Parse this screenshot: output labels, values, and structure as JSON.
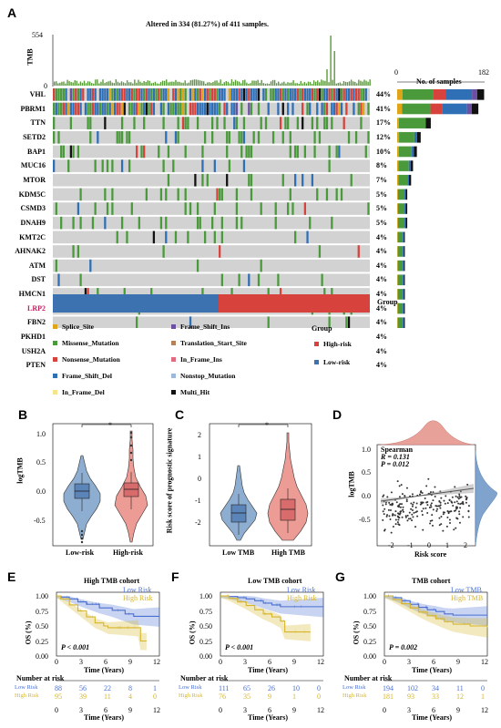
{
  "panelA": {
    "label": "A",
    "title": "Altered in 334 (81.27%) of 411 samples.",
    "tmb_label": "TMB",
    "tmb_max": "554",
    "tmb_min": "0",
    "bar_axis_min": "0",
    "bar_axis_max": "182",
    "bar_axis_label": "No. of samples",
    "group_label": "Group",
    "genes": [
      {
        "name": "VHL",
        "pct": "44%",
        "count": 181
      },
      {
        "name": "PBRM1",
        "pct": "41%",
        "count": 169
      },
      {
        "name": "TTN",
        "pct": "17%",
        "count": 70
      },
      {
        "name": "SETD2",
        "pct": "12%",
        "count": 49
      },
      {
        "name": "BAP1",
        "pct": "10%",
        "count": 41
      },
      {
        "name": "MUC16",
        "pct": "8%",
        "count": 33
      },
      {
        "name": "MTOR",
        "pct": "7%",
        "count": 29
      },
      {
        "name": "KDM5C",
        "pct": "5%",
        "count": 21
      },
      {
        "name": "CSMD3",
        "pct": "5%",
        "count": 21
      },
      {
        "name": "DNAH9",
        "pct": "5%",
        "count": 21
      },
      {
        "name": "KMT2C",
        "pct": "4%",
        "count": 16
      },
      {
        "name": "AHNAK2",
        "pct": "4%",
        "count": 16
      },
      {
        "name": "ATM",
        "pct": "4%",
        "count": 16
      },
      {
        "name": "DST",
        "pct": "4%",
        "count": 16
      },
      {
        "name": "HMCN1",
        "pct": "4%",
        "count": 16
      },
      {
        "name": "LRP2",
        "pct": "4%",
        "count": 16
      },
      {
        "name": "FBN2",
        "pct": "4%",
        "count": 16
      },
      {
        "name": "PKHD1",
        "pct": "4%",
        "count": 16
      },
      {
        "name": "USH2A",
        "pct": "4%",
        "count": 16
      },
      {
        "name": "PTEN",
        "pct": "4%",
        "count": 16
      }
    ],
    "mutation_legend": [
      {
        "label": "Splice_Site",
        "color": "#e0a419"
      },
      {
        "label": "Missense_Mutation",
        "color": "#4a9a3c"
      },
      {
        "label": "Nonsense_Mutation",
        "color": "#d8423c"
      },
      {
        "label": "Frame_Shift_Del",
        "color": "#2f6fb6"
      },
      {
        "label": "In_Frame_Del",
        "color": "#f5e48a"
      },
      {
        "label": "Frame_Shift_Ins",
        "color": "#6a4fa2"
      },
      {
        "label": "Translation_Start_Site",
        "color": "#b5805a"
      },
      {
        "label": "In_Frame_Ins",
        "color": "#e26b7d"
      },
      {
        "label": "Nonstop_Mutation",
        "color": "#9ab9dc"
      },
      {
        "label": "Multi_Hit",
        "color": "#111111"
      }
    ],
    "group_legend_title": "Group",
    "group_legend": [
      {
        "label": "High-risk",
        "color": "#d8423c"
      },
      {
        "label": "Low-risk",
        "color": "#3d72b0"
      }
    ]
  },
  "panelB": {
    "label": "B",
    "ylabel": "logTMB",
    "sig": "*",
    "categories": [
      "Low-risk",
      "High-risk"
    ],
    "yticks": [
      "1.0",
      "0.5",
      "0.0",
      "-0.5"
    ]
  },
  "panelC": {
    "label": "C",
    "ylabel": "Risk score of prognostic signature",
    "sig": "*",
    "categories": [
      "Low TMB",
      "High TMB"
    ],
    "yticks": [
      "2",
      "1",
      "0",
      "-1",
      "-2"
    ]
  },
  "panelD": {
    "label": "D",
    "ylabel": "logTMB",
    "xlabel": "Risk score",
    "stat_method": "Spearman",
    "stat_r": "R = 0.131",
    "stat_p": "P = 0.012",
    "yticks": [
      "1.0",
      "0.5",
      "0.0",
      "-0.5"
    ],
    "xticks": [
      "-2",
      "-1",
      "0",
      "1",
      "2"
    ]
  },
  "km_common": {
    "ylabel": "OS (%)",
    "xlabel": "Time (Years)",
    "yticks": [
      "1.00",
      "0.75",
      "0.50",
      "0.25",
      "0.00"
    ],
    "xticks": [
      "0",
      "3",
      "6",
      "9",
      "12"
    ],
    "risk_title": "Number at risk"
  },
  "panelE": {
    "label": "E",
    "title": "High TMB cohort",
    "legend": [
      "Low Risk",
      "High Risk"
    ],
    "pval": "P < 0.001",
    "risk_rows": [
      {
        "name": "Low Risk",
        "values": [
          "88",
          "56",
          "22",
          "8",
          "1"
        ]
      },
      {
        "name": "High Risk",
        "values": [
          "95",
          "39",
          "11",
          "4",
          "0"
        ]
      }
    ]
  },
  "panelF": {
    "label": "F",
    "title": "Low TMB cohort",
    "legend": [
      "Low Risk",
      "High Risk"
    ],
    "pval": "P < 0.001",
    "risk_rows": [
      {
        "name": "Low Risk",
        "values": [
          "111",
          "65",
          "26",
          "10",
          "0"
        ]
      },
      {
        "name": "High Risk",
        "values": [
          "76",
          "35",
          "9",
          "1",
          "0"
        ]
      }
    ]
  },
  "panelG": {
    "label": "G",
    "title": "TMB cohort",
    "legend": [
      "Low TMB",
      "High TMB"
    ],
    "pval": "P = 0.002",
    "risk_rows": [
      {
        "name": "Low Risk",
        "values": [
          "194",
          "102",
          "34",
          "11",
          "0"
        ]
      },
      {
        "name": "High Risk",
        "values": [
          "181",
          "93",
          "33",
          "12",
          "1"
        ]
      }
    ]
  },
  "colors": {
    "low": "#3d72b0",
    "high": "#d8423c",
    "km_low": "#4a6fd0",
    "km_high": "#d6b52a",
    "grey": "#d2d2d2"
  },
  "chart_data": [
    {
      "type": "bar",
      "title": "Altered in 334 (81.27%) of 411 samples.",
      "categories": [
        "VHL",
        "PBRM1",
        "TTN",
        "SETD2",
        "BAP1",
        "MUC16",
        "MTOR",
        "KDM5C",
        "CSMD3",
        "DNAH9",
        "KMT2C",
        "AHNAK2",
        "ATM",
        "DST",
        "HMCN1",
        "LRP2",
        "FBN2",
        "PKHD1",
        "USH2A",
        "PTEN"
      ],
      "values": [
        44,
        41,
        17,
        12,
        10,
        8,
        7,
        5,
        5,
        5,
        4,
        4,
        4,
        4,
        4,
        4,
        4,
        4,
        4,
        4
      ],
      "xlabel": "No. of samples",
      "xlim": [
        0,
        182
      ]
    },
    {
      "type": "violin",
      "categories": [
        "Low-risk",
        "High-risk"
      ],
      "medians": [
        -0.05,
        0.0
      ],
      "ylabel": "logTMB",
      "ylim": [
        -0.8,
        1.2
      ]
    },
    {
      "type": "violin",
      "categories": [
        "Low TMB",
        "High TMB"
      ],
      "medians": [
        -1.4,
        -1.15
      ],
      "ylabel": "Risk score of prognostic signature",
      "ylim": [
        -2.5,
        2.2
      ]
    },
    {
      "type": "scatter",
      "xlabel": "Risk score",
      "ylabel": "logTMB",
      "annotation": [
        "Spearman",
        "R = 0.131",
        "P = 0.012"
      ],
      "xlim": [
        -2.7,
        2.5
      ],
      "ylim": [
        -0.8,
        1.2
      ]
    },
    {
      "type": "line",
      "title": "High TMB cohort",
      "xlabel": "Time (Years)",
      "ylabel": "OS (%)",
      "series": [
        {
          "name": "Low Risk",
          "x": [
            0,
            3,
            6,
            9,
            10,
            12
          ],
          "y": [
            1.0,
            0.88,
            0.78,
            0.68,
            0.65,
            0.65
          ]
        },
        {
          "name": "High Risk",
          "x": [
            0,
            3,
            6,
            9,
            10,
            10.5
          ],
          "y": [
            1.0,
            0.7,
            0.48,
            0.46,
            0.46,
            0.25
          ]
        }
      ],
      "xlim": [
        0,
        12
      ],
      "ylim": [
        0,
        1
      ]
    },
    {
      "type": "line",
      "title": "Low TMB cohort",
      "xlabel": "Time (Years)",
      "ylabel": "OS (%)",
      "series": [
        {
          "name": "Low Risk",
          "x": [
            0,
            3,
            6,
            9,
            12
          ],
          "y": [
            1.0,
            0.95,
            0.85,
            0.82,
            0.82
          ]
        },
        {
          "name": "High Risk",
          "x": [
            0,
            3,
            6,
            7.5,
            9,
            10.5
          ],
          "y": [
            1.0,
            0.85,
            0.65,
            0.4,
            0.4,
            0.4
          ]
        }
      ],
      "xlim": [
        0,
        12
      ],
      "ylim": [
        0,
        1
      ]
    },
    {
      "type": "line",
      "title": "TMB cohort",
      "xlabel": "Time (Years)",
      "ylabel": "OS (%)",
      "series": [
        {
          "name": "Low TMB",
          "x": [
            0,
            3,
            6,
            9,
            12
          ],
          "y": [
            1.0,
            0.85,
            0.75,
            0.68,
            0.68
          ]
        },
        {
          "name": "High TMB",
          "x": [
            0,
            3,
            6,
            9,
            12
          ],
          "y": [
            1.0,
            0.78,
            0.62,
            0.52,
            0.48
          ]
        }
      ],
      "xlim": [
        0,
        12
      ],
      "ylim": [
        0,
        1
      ]
    }
  ]
}
